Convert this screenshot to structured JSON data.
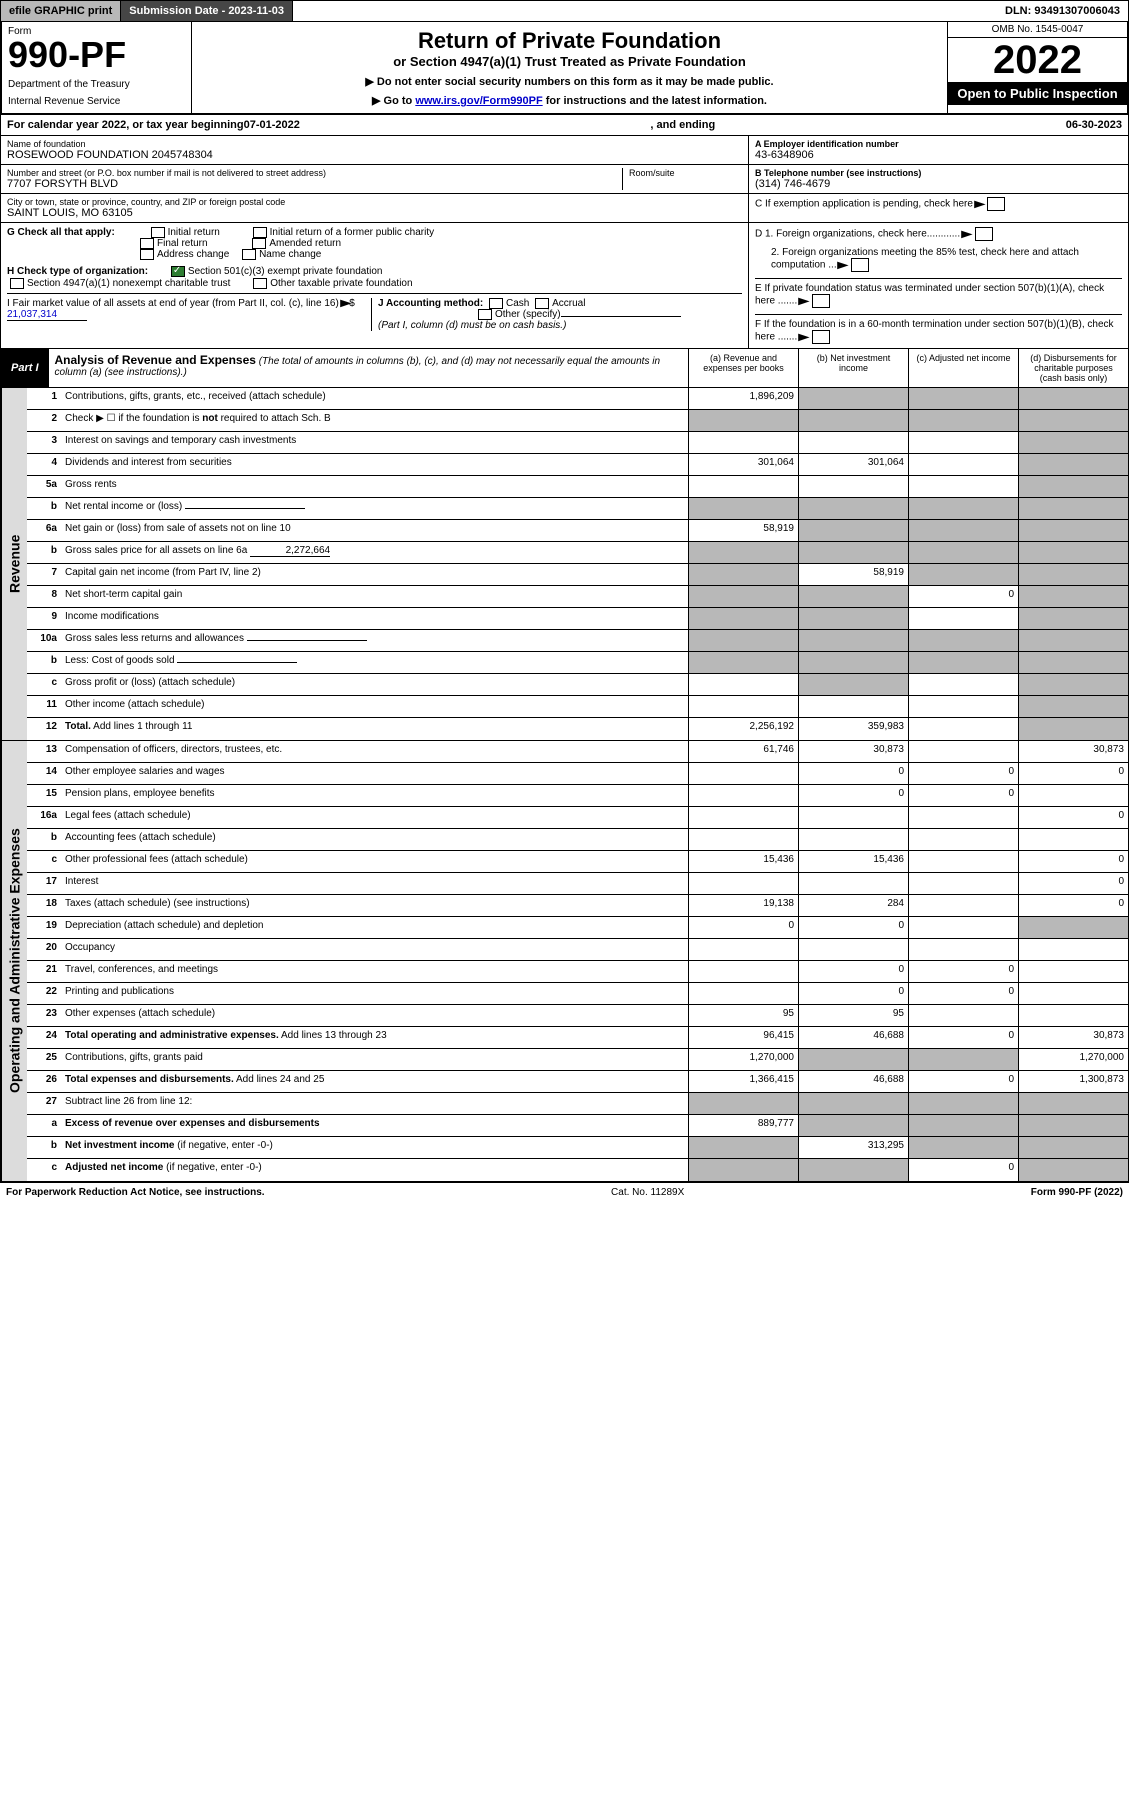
{
  "topbar": {
    "efile": "efile GRAPHIC print",
    "subdate_label": "Submission Date - 2023-11-03",
    "dln": "DLN: 93491307006043"
  },
  "header": {
    "form_label": "Form",
    "form_number": "990-PF",
    "dept": "Department of the Treasury",
    "irs": "Internal Revenue Service",
    "title": "Return of Private Foundation",
    "subtitle": "or Section 4947(a)(1) Trust Treated as Private Foundation",
    "instr1": "▶ Do not enter social security numbers on this form as it may be made public.",
    "instr2_pre": "▶ Go to ",
    "instr2_link": "www.irs.gov/Form990PF",
    "instr2_post": " for instructions and the latest information.",
    "omb": "OMB No. 1545-0047",
    "year": "2022",
    "inspect": "Open to Public Inspection"
  },
  "calyear": {
    "text_pre": "For calendar year 2022, or tax year beginning ",
    "begin": "07-01-2022",
    "text_mid": ", and ending ",
    "end": "06-30-2023"
  },
  "foundation": {
    "name_lbl": "Name of foundation",
    "name": "ROSEWOOD FOUNDATION 2045748304",
    "addr_lbl": "Number and street (or P.O. box number if mail is not delivered to street address)",
    "addr": "7707 FORSYTH BLVD",
    "room_lbl": "Room/suite",
    "city_lbl": "City or town, state or province, country, and ZIP or foreign postal code",
    "city": "SAINT LOUIS, MO  63105",
    "ein_lbl": "A Employer identification number",
    "ein": "43-6348906",
    "tel_lbl": "B Telephone number (see instructions)",
    "tel": "(314) 746-4679",
    "c_lbl": "C If exemption application is pending, check here",
    "d1": "D 1. Foreign organizations, check here............",
    "d2": "2. Foreign organizations meeting the 85% test, check here and attach computation ...",
    "e": "E If private foundation status was terminated under section 507(b)(1)(A), check here .......",
    "f": "F If the foundation is in a 60-month termination under section 507(b)(1)(B), check here .......",
    "g_lbl": "G Check all that apply:",
    "g_opts": [
      "Initial return",
      "Final return",
      "Address change",
      "Initial return of a former public charity",
      "Amended return",
      "Name change"
    ],
    "h_lbl": "H Check type of organization:",
    "h_opt1": "Section 501(c)(3) exempt private foundation",
    "h_opt2": "Section 4947(a)(1) nonexempt charitable trust",
    "h_opt3": "Other taxable private foundation",
    "i_lbl": "I Fair market value of all assets at end of year (from Part II, col. (c), line 16)",
    "i_val": "21,037,314",
    "j_lbl": "J Accounting method:",
    "j_opts": [
      "Cash",
      "Accrual",
      "Other (specify)"
    ],
    "j_note": "(Part I, column (d) must be on cash basis.)"
  },
  "part1": {
    "label": "Part I",
    "title": "Analysis of Revenue and Expenses",
    "desc": " (The total of amounts in columns (b), (c), and (d) may not necessarily equal the amounts in column (a) (see instructions).)",
    "cols": {
      "a": "(a) Revenue and expenses per books",
      "b": "(b) Net investment income",
      "c": "(c) Adjusted net income",
      "d": "(d) Disbursements for charitable purposes (cash basis only)"
    }
  },
  "sections": {
    "revenue": "Revenue",
    "expenses": "Operating and Administrative Expenses"
  },
  "rows": [
    {
      "n": "1",
      "label": "Contributions, gifts, grants, etc., received (attach schedule)",
      "a": "1,896,209",
      "b": "",
      "c": "",
      "d": "",
      "bg": "g",
      "cg": "g",
      "dg": "g"
    },
    {
      "n": "2",
      "label": "Check ▶ ☐ if the foundation is **not** required to attach Sch. B",
      "a": "",
      "b": "",
      "c": "",
      "d": "",
      "ag": "g",
      "bg": "g",
      "cg": "g",
      "dg": "g"
    },
    {
      "n": "3",
      "label": "Interest on savings and temporary cash investments",
      "a": "",
      "b": "",
      "c": "",
      "d": "",
      "dg": "g"
    },
    {
      "n": "4",
      "label": "Dividends and interest from securities",
      "a": "301,064",
      "b": "301,064",
      "c": "",
      "d": "",
      "dg": "g"
    },
    {
      "n": "5a",
      "label": "Gross rents",
      "a": "",
      "b": "",
      "c": "",
      "d": "",
      "dg": "g"
    },
    {
      "n": "b",
      "label": "Net rental income or (loss)",
      "a": "",
      "b": "",
      "c": "",
      "d": "",
      "ag": "g",
      "bg": "g",
      "cg": "g",
      "dg": "g",
      "inline": true
    },
    {
      "n": "6a",
      "label": "Net gain or (loss) from sale of assets not on line 10",
      "a": "58,919",
      "b": "",
      "c": "",
      "d": "",
      "bg": "g",
      "cg": "g",
      "dg": "g"
    },
    {
      "n": "b",
      "label": "Gross sales price for all assets on line 6a",
      "inline_val": "2,272,664",
      "a": "",
      "b": "",
      "c": "",
      "d": "",
      "ag": "g",
      "bg": "g",
      "cg": "g",
      "dg": "g"
    },
    {
      "n": "7",
      "label": "Capital gain net income (from Part IV, line 2)",
      "a": "",
      "b": "58,919",
      "c": "",
      "d": "",
      "ag": "g",
      "cg": "g",
      "dg": "g"
    },
    {
      "n": "8",
      "label": "Net short-term capital gain",
      "a": "",
      "b": "",
      "c": "0",
      "d": "",
      "ag": "g",
      "bg": "g",
      "dg": "g"
    },
    {
      "n": "9",
      "label": "Income modifications",
      "a": "",
      "b": "",
      "c": "",
      "d": "",
      "ag": "g",
      "bg": "g",
      "dg": "g"
    },
    {
      "n": "10a",
      "label": "Gross sales less returns and allowances",
      "a": "",
      "b": "",
      "c": "",
      "d": "",
      "ag": "g",
      "bg": "g",
      "cg": "g",
      "dg": "g",
      "inline": true
    },
    {
      "n": "b",
      "label": "Less: Cost of goods sold",
      "a": "",
      "b": "",
      "c": "",
      "d": "",
      "ag": "g",
      "bg": "g",
      "cg": "g",
      "dg": "g",
      "inline": true
    },
    {
      "n": "c",
      "label": "Gross profit or (loss) (attach schedule)",
      "a": "",
      "b": "",
      "c": "",
      "d": "",
      "bg": "g",
      "dg": "g"
    },
    {
      "n": "11",
      "label": "Other income (attach schedule)",
      "a": "",
      "b": "",
      "c": "",
      "d": "",
      "dg": "g"
    },
    {
      "n": "12",
      "label": "**Total.** Add lines 1 through 11",
      "a": "2,256,192",
      "b": "359,983",
      "c": "",
      "d": "",
      "dg": "g",
      "bold": true
    }
  ],
  "exp_rows": [
    {
      "n": "13",
      "label": "Compensation of officers, directors, trustees, etc.",
      "a": "61,746",
      "b": "30,873",
      "c": "",
      "d": "30,873"
    },
    {
      "n": "14",
      "label": "Other employee salaries and wages",
      "a": "",
      "b": "0",
      "c": "0",
      "d": "0"
    },
    {
      "n": "15",
      "label": "Pension plans, employee benefits",
      "a": "",
      "b": "0",
      "c": "0",
      "d": ""
    },
    {
      "n": "16a",
      "label": "Legal fees (attach schedule)",
      "a": "",
      "b": "",
      "c": "",
      "d": "0"
    },
    {
      "n": "b",
      "label": "Accounting fees (attach schedule)",
      "a": "",
      "b": "",
      "c": "",
      "d": ""
    },
    {
      "n": "c",
      "label": "Other professional fees (attach schedule)",
      "a": "15,436",
      "b": "15,436",
      "c": "",
      "d": "0"
    },
    {
      "n": "17",
      "label": "Interest",
      "a": "",
      "b": "",
      "c": "",
      "d": "0"
    },
    {
      "n": "18",
      "label": "Taxes (attach schedule) (see instructions)",
      "a": "19,138",
      "b": "284",
      "c": "",
      "d": "0"
    },
    {
      "n": "19",
      "label": "Depreciation (attach schedule) and depletion",
      "a": "0",
      "b": "0",
      "c": "",
      "d": "",
      "dg": "g"
    },
    {
      "n": "20",
      "label": "Occupancy",
      "a": "",
      "b": "",
      "c": "",
      "d": ""
    },
    {
      "n": "21",
      "label": "Travel, conferences, and meetings",
      "a": "",
      "b": "0",
      "c": "0",
      "d": ""
    },
    {
      "n": "22",
      "label": "Printing and publications",
      "a": "",
      "b": "0",
      "c": "0",
      "d": ""
    },
    {
      "n": "23",
      "label": "Other expenses (attach schedule)",
      "a": "95",
      "b": "95",
      "c": "",
      "d": ""
    },
    {
      "n": "24",
      "label": "**Total operating and administrative expenses.** Add lines 13 through 23",
      "a": "96,415",
      "b": "46,688",
      "c": "0",
      "d": "30,873",
      "bold": true
    },
    {
      "n": "25",
      "label": "Contributions, gifts, grants paid",
      "a": "1,270,000",
      "b": "",
      "c": "",
      "d": "1,270,000",
      "bg": "g",
      "cg": "g"
    },
    {
      "n": "26",
      "label": "**Total expenses and disbursements.** Add lines 24 and 25",
      "a": "1,366,415",
      "b": "46,688",
      "c": "0",
      "d": "1,300,873",
      "bold": true
    },
    {
      "n": "27",
      "label": "Subtract line 26 from line 12:",
      "a": "",
      "b": "",
      "c": "",
      "d": "",
      "ag": "g",
      "bg": "g",
      "cg": "g",
      "dg": "g"
    },
    {
      "n": "a",
      "label": "**Excess of revenue over expenses and disbursements**",
      "a": "889,777",
      "b": "",
      "c": "",
      "d": "",
      "bg": "g",
      "cg": "g",
      "dg": "g",
      "bold": true
    },
    {
      "n": "b",
      "label": "**Net investment income** (if negative, enter -0-)",
      "a": "",
      "b": "313,295",
      "c": "",
      "d": "",
      "ag": "g",
      "cg": "g",
      "dg": "g",
      "bold": true
    },
    {
      "n": "c",
      "label": "**Adjusted net income** (if negative, enter -0-)",
      "a": "",
      "b": "",
      "c": "0",
      "d": "",
      "ag": "g",
      "bg": "g",
      "dg": "g",
      "bold": true
    }
  ],
  "footer": {
    "left": "For Paperwork Reduction Act Notice, see instructions.",
    "mid": "Cat. No. 11289X",
    "right": "Form 990-PF (2022)"
  }
}
